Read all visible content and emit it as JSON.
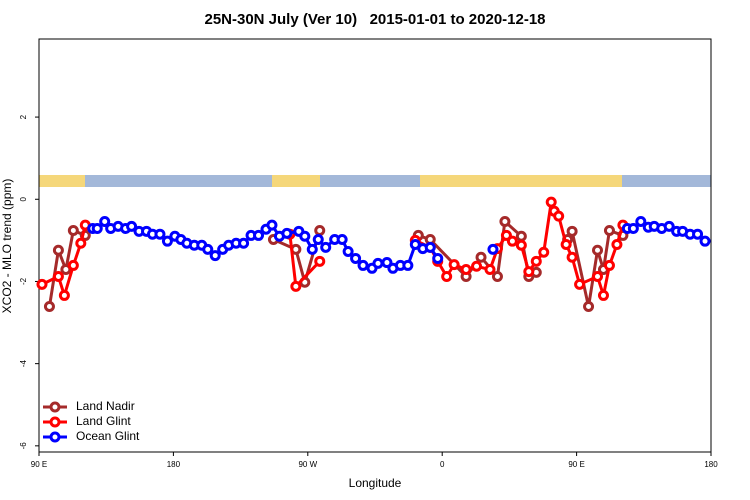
{
  "chart_data": {
    "type": "line",
    "title": "25N-30N July (Ver 10)   2015-01-01 to 2020-12-18",
    "xlabel": "Longitude",
    "ylabel": "XCO2 - MLO trend (ppm)",
    "xlim": [
      90,
      540
    ],
    "xticks": [
      {
        "value": 90,
        "label": "90 E"
      },
      180,
      {
        "value": 270,
        "label": "90 W"
      },
      {
        "value": 360,
        "label": "0"
      },
      {
        "value": 450,
        "label": "90 E"
      },
      {
        "value": 540,
        "label": "180"
      }
    ],
    "ylim": [
      -6.15,
      3.9
    ],
    "yticks": [
      -6,
      -4,
      -2,
      0,
      2
    ],
    "legend": "bottom-left",
    "series": [
      {
        "name": "Land Nadir",
        "color": "#a52a2a",
        "x": [
          97,
          103,
          108,
          113,
          121,
          200,
          247,
          262,
          268,
          278,
          340,
          344,
          352,
          376,
          386,
          397,
          402,
          413,
          418,
          423,
          435,
          444,
          447,
          458,
          464,
          468,
          472,
          481
        ],
        "values": [
          -2.61,
          -1.24,
          -1.71,
          -0.76,
          -0.88,
          null,
          -0.98,
          -1.22,
          -2.02,
          -0.76,
          null,
          -0.88,
          -0.98,
          -1.88,
          -1.41,
          -1.88,
          -0.54,
          -0.9,
          -1.88,
          -1.78,
          null,
          -0.98,
          -0.78,
          -2.61,
          -1.24,
          -1.71,
          -0.76,
          -0.88
        ]
      },
      {
        "name": "Land Glint",
        "color": "#ff0000",
        "x": [
          92,
          103,
          107,
          113,
          118,
          121,
          200,
          258,
          262,
          278,
          340,
          342,
          352,
          357,
          363,
          368,
          376,
          383,
          392,
          397,
          403,
          407,
          413,
          418,
          423,
          428,
          433,
          435,
          438,
          443,
          447,
          452,
          464,
          468,
          472,
          477,
          481
        ],
        "values": [
          -2.07,
          -1.88,
          -2.34,
          -1.61,
          -1.07,
          -0.63,
          null,
          -0.85,
          -2.12,
          -1.51,
          null,
          -1.0,
          -1.17,
          -1.51,
          -1.88,
          -1.59,
          -1.71,
          -1.63,
          -1.71,
          -1.2,
          -0.88,
          -1.02,
          -1.12,
          -1.76,
          -1.51,
          -1.29,
          -0.07,
          -0.29,
          -0.41,
          -1.1,
          -1.41,
          -2.07,
          -1.88,
          -2.34,
          -1.61,
          -1.1,
          -0.63
        ]
      },
      {
        "name": "Ocean Glint",
        "color": "#0000ff",
        "x": [
          126,
          129,
          134,
          138,
          143,
          148,
          152,
          157,
          162,
          166,
          171,
          176,
          181,
          185,
          189,
          194,
          199,
          203,
          208,
          213,
          217,
          222,
          227,
          232,
          237,
          242,
          246,
          251,
          256,
          264,
          268,
          273,
          277,
          282,
          288,
          293,
          297,
          302,
          307,
          313,
          317,
          323,
          327,
          332,
          337,
          342,
          347,
          352,
          357,
          375,
          394,
          440,
          484,
          488,
          493,
          498,
          502,
          507,
          512,
          517,
          521,
          526,
          531,
          536
        ],
        "values": [
          -0.71,
          -0.71,
          -0.54,
          -0.71,
          -0.66,
          -0.71,
          -0.66,
          -0.78,
          -0.78,
          -0.85,
          -0.85,
          -1.02,
          -0.9,
          -0.98,
          -1.07,
          -1.12,
          -1.12,
          -1.22,
          -1.37,
          -1.22,
          -1.12,
          -1.07,
          -1.07,
          -0.88,
          -0.88,
          -0.73,
          -0.63,
          -0.9,
          -0.83,
          -0.78,
          -0.9,
          -1.22,
          -0.98,
          -1.17,
          -0.98,
          -0.98,
          -1.27,
          -1.44,
          -1.61,
          -1.68,
          -1.56,
          -1.54,
          -1.68,
          -1.61,
          -1.61,
          -1.1,
          -1.2,
          -1.17,
          -1.44,
          null,
          -1.22,
          null,
          -0.71,
          -0.71,
          -0.54,
          -0.68,
          -0.66,
          -0.71,
          -0.66,
          -0.78,
          -0.78,
          -0.85,
          -0.85,
          -1.02
        ]
      }
    ]
  }
}
